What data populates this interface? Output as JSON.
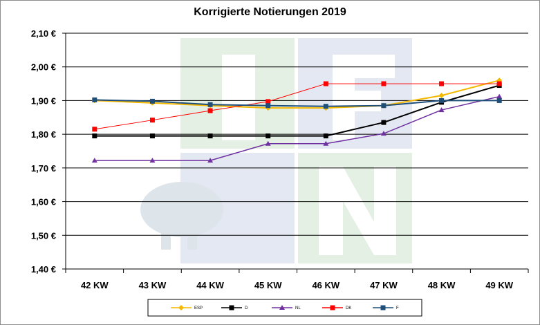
{
  "chart_data": {
    "type": "line",
    "title": "Korrigierte Notierungen 2019",
    "xlabel": "",
    "ylabel": "",
    "categories": [
      "42 KW",
      "43 KW",
      "44 KW",
      "45 KW",
      "46 KW",
      "47 KW",
      "48 KW",
      "49 KW"
    ],
    "ylim": [
      1.4,
      2.1
    ],
    "yticks": [
      "1,40 €",
      "1,50 €",
      "1,60 €",
      "1,70 €",
      "1,80 €",
      "1,90 €",
      "2,00 €",
      "2,10 €"
    ],
    "grid": true,
    "legend_position": "bottom",
    "series": [
      {
        "name": "ESP",
        "color": "#f5b800",
        "marker": "diamond",
        "values": [
          1.9,
          1.893,
          1.885,
          1.878,
          1.878,
          1.885,
          1.915,
          1.96
        ]
      },
      {
        "name": "D",
        "color": "#000000",
        "marker": "square",
        "values": [
          1.795,
          1.795,
          1.795,
          1.795,
          1.795,
          1.835,
          1.895,
          1.945
        ]
      },
      {
        "name": "NL",
        "color": "#7030a0",
        "marker": "triangle",
        "values": [
          1.722,
          1.722,
          1.722,
          1.772,
          1.772,
          1.802,
          1.872,
          1.912
        ]
      },
      {
        "name": "DK",
        "color": "#ff0000",
        "marker": "square",
        "values": [
          1.815,
          1.842,
          1.87,
          1.897,
          1.95,
          1.95,
          1.95,
          1.95
        ]
      },
      {
        "name": "F",
        "color": "#1f4e79",
        "marker": "square",
        "values": [
          1.902,
          1.898,
          1.888,
          1.885,
          1.883,
          1.885,
          1.9,
          1.9
        ]
      }
    ]
  }
}
